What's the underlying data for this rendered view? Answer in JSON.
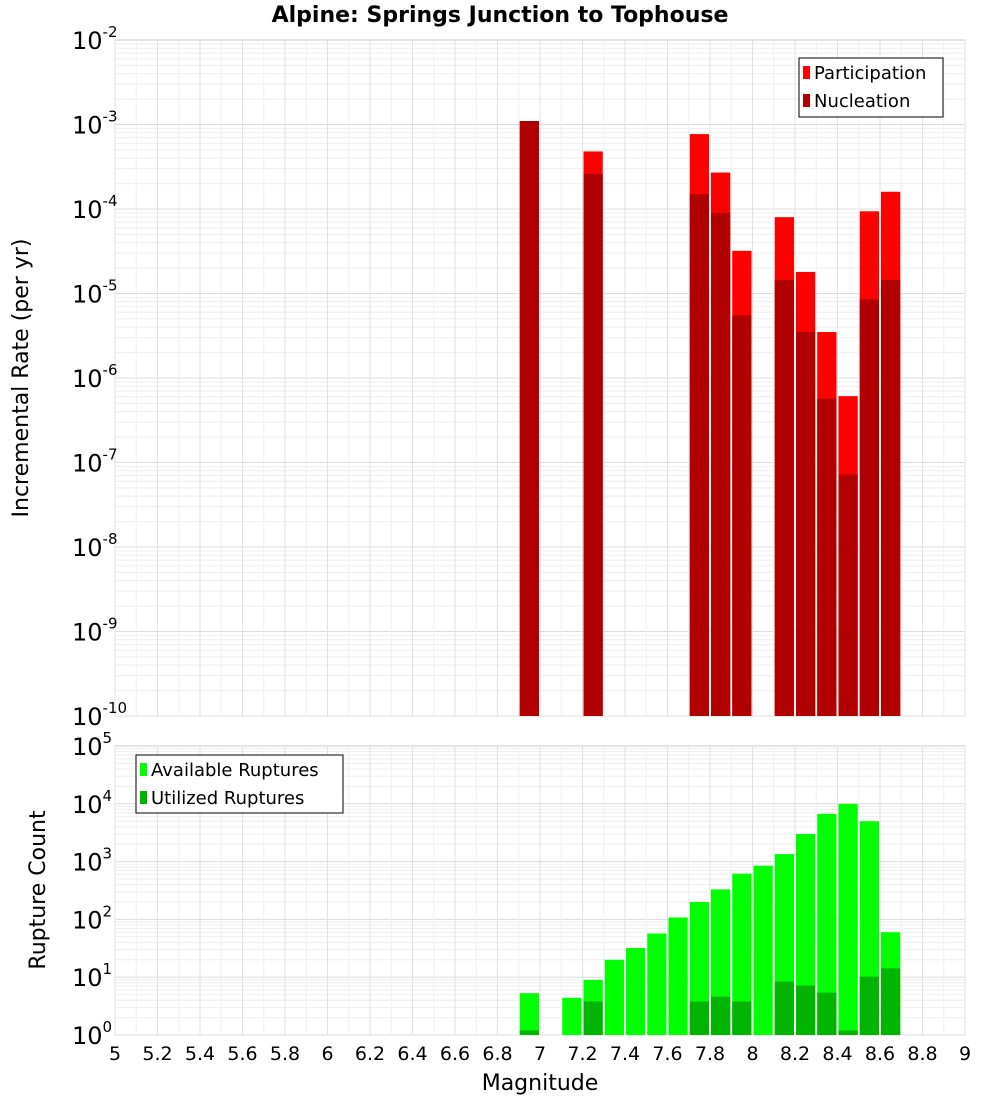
{
  "chart_data": [
    {
      "type": "bar",
      "title": "Alpine: Springs Junction to Tophouse",
      "xlabel": "Magnitude",
      "ylabel": "Incremental Rate (per yr)",
      "yscale": "log",
      "xlim": [
        5,
        9
      ],
      "ylim": [
        1e-10,
        0.01
      ],
      "grid": true,
      "legend_position": "top-right",
      "bar_width": 0.1,
      "x": [
        6.95,
        7.25,
        7.75,
        7.85,
        7.95,
        8.15,
        8.25,
        8.35,
        8.45,
        8.55,
        8.65
      ],
      "series": [
        {
          "name": "Participation",
          "color": "#ff0000",
          "values": [
            0.0011,
            0.00048,
            0.00077,
            0.00027,
            3.2e-05,
            8e-05,
            1.8e-05,
            3.5e-06,
            6.1e-07,
            9.4e-05,
            0.00016
          ]
        },
        {
          "name": "Nucleation",
          "color": "#b00000",
          "values": [
            0.0011,
            0.00026,
            0.00015,
            9e-05,
            5.5e-06,
            1.45e-05,
            3.5e-06,
            5.7e-07,
            7.2e-08,
            8.5e-06,
            1.45e-05
          ]
        }
      ]
    },
    {
      "type": "bar",
      "xlabel": "Magnitude",
      "ylabel": "Rupture Count",
      "yscale": "log",
      "xlim": [
        5,
        9
      ],
      "ylim": [
        1,
        100000
      ],
      "grid": true,
      "legend_position": "top-left",
      "bar_width": 0.1,
      "x": [
        6.95,
        7.15,
        7.25,
        7.35,
        7.45,
        7.55,
        7.65,
        7.75,
        7.85,
        7.95,
        8.05,
        8.15,
        8.25,
        8.35,
        8.45,
        8.55,
        8.65
      ],
      "series": [
        {
          "name": "Available Ruptures",
          "color": "#00ff00",
          "values": [
            5.3,
            4.4,
            9,
            20,
            32,
            57,
            108,
            200,
            330,
            620,
            850,
            1350,
            3000,
            6700,
            10000,
            5000,
            60
          ]
        },
        {
          "name": "Utilized Ruptures",
          "color": "#00b400",
          "values": [
            1.2,
            0,
            3.8,
            0,
            0,
            0,
            0,
            3.8,
            4.6,
            3.8,
            0,
            8.4,
            7.2,
            5.4,
            1.2,
            10.2,
            14.2
          ]
        }
      ]
    }
  ],
  "xticks": [
    "5",
    "5.2",
    "5.4",
    "5.6",
    "5.8",
    "6",
    "6.2",
    "6.4",
    "6.6",
    "6.8",
    "7",
    "7.2",
    "7.4",
    "7.6",
    "7.8",
    "8",
    "8.2",
    "8.4",
    "8.6",
    "8.8",
    "9"
  ],
  "top_yticks": [
    {
      "base": "10",
      "exp": "-2"
    },
    {
      "base": "10",
      "exp": "-3"
    },
    {
      "base": "10",
      "exp": "-4"
    },
    {
      "base": "10",
      "exp": "-5"
    },
    {
      "base": "10",
      "exp": "-6"
    },
    {
      "base": "10",
      "exp": "-7"
    },
    {
      "base": "10",
      "exp": "-8"
    },
    {
      "base": "10",
      "exp": "-9"
    },
    {
      "base": "10",
      "exp": "-10"
    }
  ],
  "bottom_yticks": [
    {
      "base": "10",
      "exp": "5"
    },
    {
      "base": "10",
      "exp": "4"
    },
    {
      "base": "10",
      "exp": "3"
    },
    {
      "base": "10",
      "exp": "2"
    },
    {
      "base": "10",
      "exp": "1"
    },
    {
      "base": "10",
      "exp": "0"
    }
  ]
}
